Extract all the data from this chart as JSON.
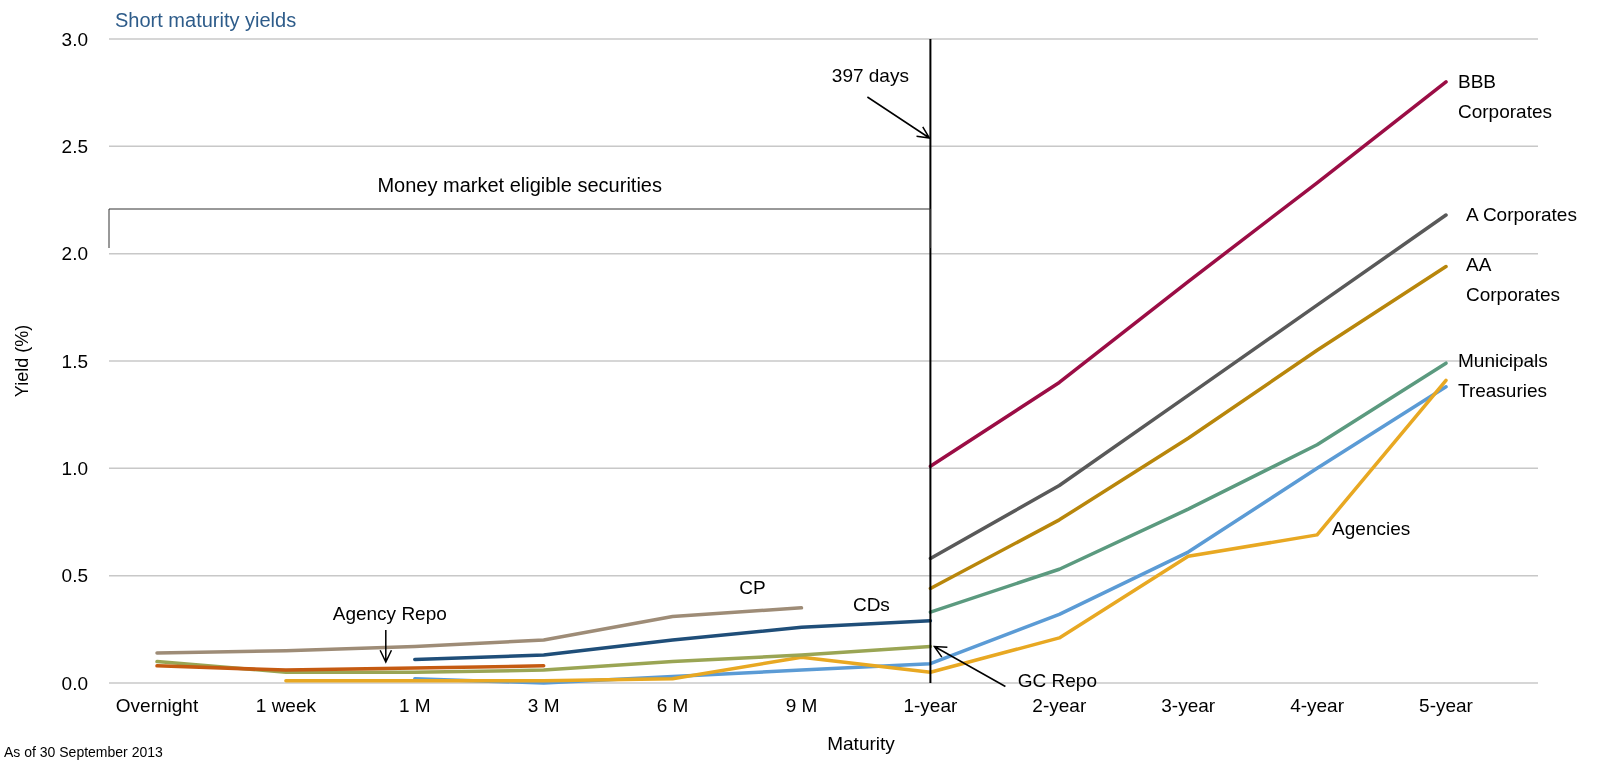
{
  "chart_data": {
    "type": "line",
    "title": "Short maturity yields",
    "xlabel": "Maturity",
    "ylabel": "Yield (%)",
    "categories": [
      "Overnight",
      "1 week",
      "1 M",
      "3 M",
      "6 M",
      "9 M",
      "1-year",
      "2-year",
      "3-year",
      "4-year",
      "5-year"
    ],
    "series": [
      {
        "name": "BBB Corporates",
        "color": "#9b0d45",
        "values": [
          null,
          null,
          null,
          null,
          null,
          null,
          1.01,
          1.4,
          1.87,
          2.33,
          2.8
        ]
      },
      {
        "name": "A Corporates",
        "color": "#595959",
        "values": [
          null,
          null,
          null,
          null,
          null,
          null,
          0.58,
          0.92,
          1.34,
          1.76,
          2.18
        ]
      },
      {
        "name": "AA Corporates",
        "color": "#b8860b",
        "values": [
          null,
          null,
          null,
          null,
          null,
          null,
          0.44,
          0.76,
          1.14,
          1.55,
          1.94
        ]
      },
      {
        "name": "Municipals",
        "color": "#5b9a7f",
        "values": [
          null,
          null,
          null,
          null,
          null,
          null,
          0.33,
          0.53,
          0.81,
          1.11,
          1.49
        ]
      },
      {
        "name": "Treasuries",
        "color": "#5b9bd5",
        "values": [
          null,
          null,
          0.02,
          0.0,
          0.03,
          0.06,
          0.09,
          0.32,
          0.61,
          1.0,
          1.38
        ]
      },
      {
        "name": "Agencies",
        "color": "#e8a822",
        "values": [
          null,
          0.01,
          0.01,
          0.01,
          0.02,
          0.12,
          0.05,
          0.21,
          0.59,
          0.69,
          1.41
        ]
      },
      {
        "name": "CP",
        "color": "#9e8c77",
        "values": [
          0.14,
          0.15,
          0.17,
          0.2,
          0.31,
          0.35,
          null,
          null,
          null,
          null,
          null
        ]
      },
      {
        "name": "CDs",
        "color": "#1f4e79",
        "values": [
          null,
          null,
          0.11,
          0.13,
          0.2,
          0.26,
          0.29,
          null,
          null,
          null,
          null
        ]
      },
      {
        "name": "GC Repo",
        "color": "#9aa554",
        "values": [
          0.1,
          0.05,
          0.05,
          0.06,
          0.1,
          0.13,
          0.17,
          null,
          null,
          null,
          null
        ]
      },
      {
        "name": "Agency Repo",
        "color": "#c55a11",
        "values": [
          0.08,
          0.06,
          0.07,
          0.08,
          null,
          null,
          null,
          null,
          null,
          null,
          null
        ]
      }
    ],
    "ylim": [
      0,
      3
    ],
    "yticks": [
      {
        "value": 0,
        "label": "0.0"
      },
      {
        "value": 0.5,
        "label": "0.5"
      },
      {
        "value": 1,
        "label": "1.0"
      },
      {
        "value": 1.5,
        "label": "1.5"
      },
      {
        "value": 2,
        "label": "2.0"
      },
      {
        "value": 2.5,
        "label": "2.5"
      },
      {
        "value": 3,
        "label": "3.0"
      }
    ],
    "grid": "y",
    "ref_lines": [
      {
        "axis": "x",
        "value": "1-year",
        "label": "397 days",
        "color": "#000000"
      }
    ],
    "annotations": [
      "Money market eligible securities",
      "As of 30 September 2013"
    ]
  }
}
